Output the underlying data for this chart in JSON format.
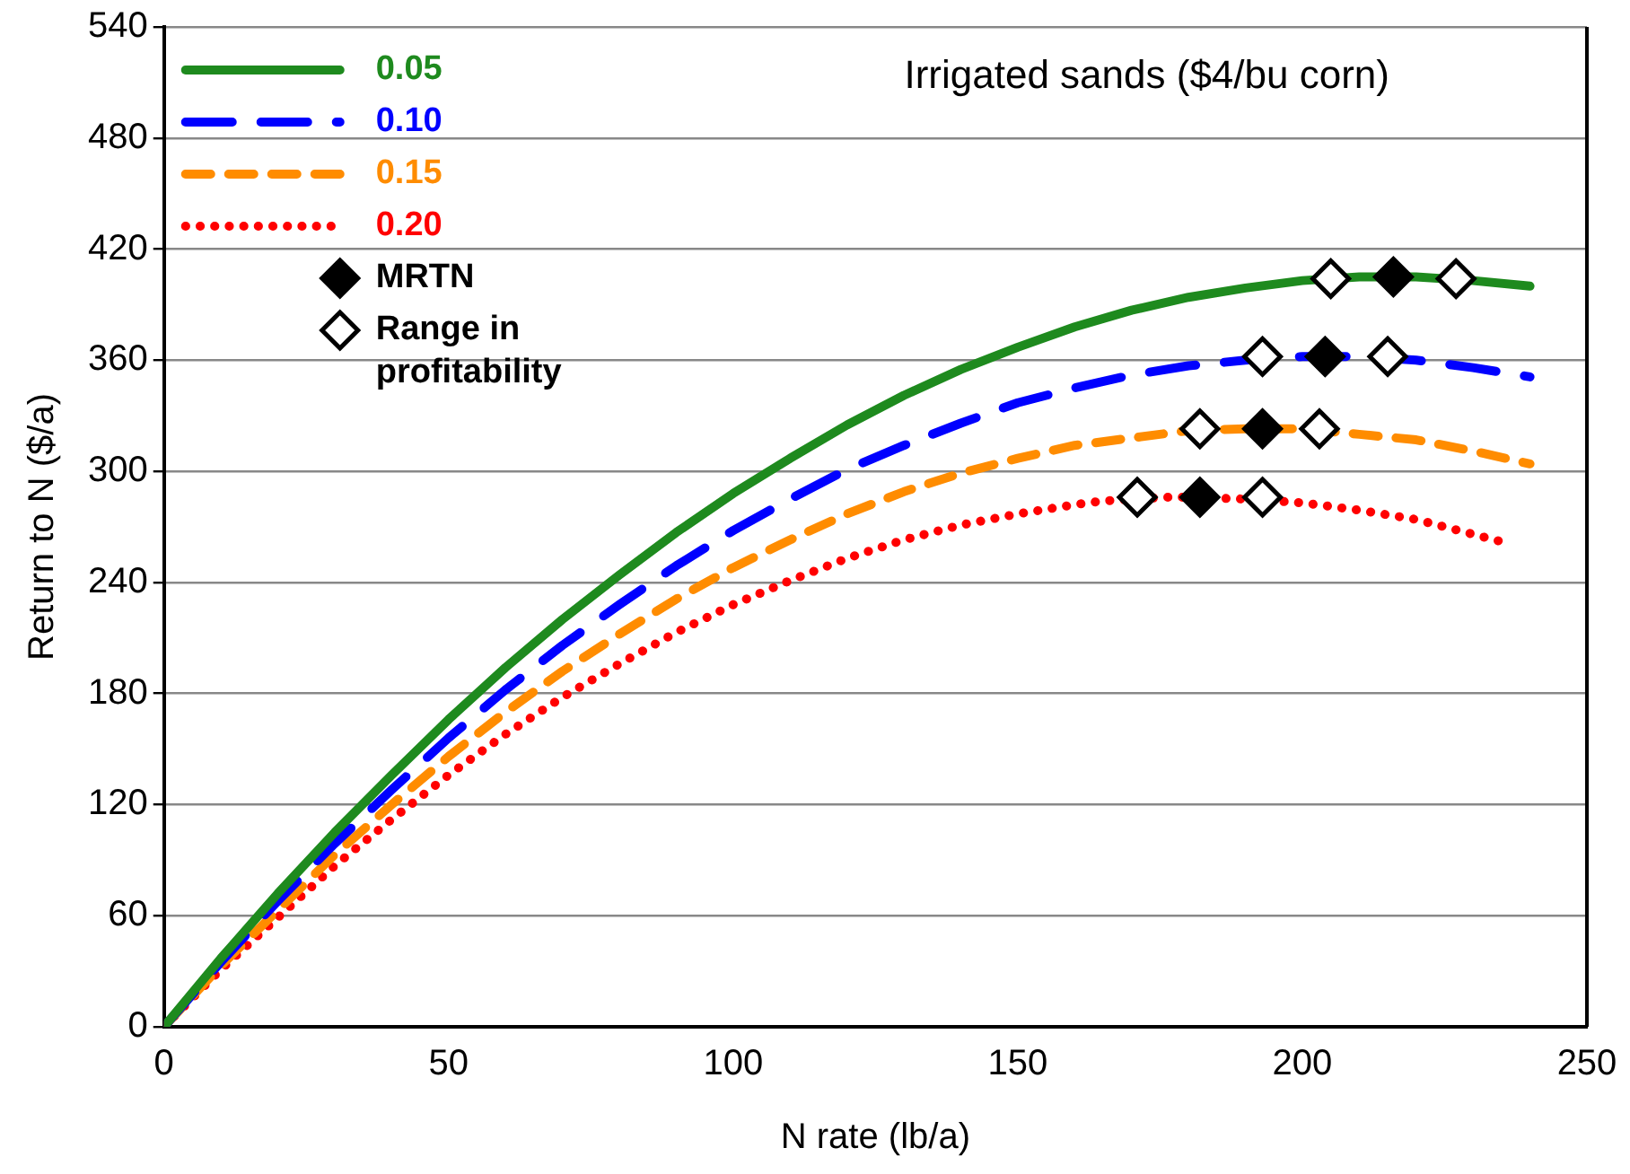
{
  "chart_data": {
    "type": "line",
    "title": "Irrigated sands ($4/bu corn)",
    "xlabel": "N rate (lb/a)",
    "ylabel": "Return to N ($/a)",
    "xlim": [
      0,
      250
    ],
    "xticks": [
      0,
      50,
      100,
      150,
      200,
      250
    ],
    "ylim": [
      0,
      540
    ],
    "yticks": [
      0,
      60,
      120,
      180,
      240,
      300,
      360,
      420,
      480,
      540
    ],
    "grid": "y",
    "legend": "top left",
    "marker": "none",
    "series": [
      {
        "name": "0.05",
        "color": "#1e8a1e",
        "line_style": "solid",
        "x": [
          0,
          10,
          20,
          30,
          40,
          50,
          60,
          70,
          80,
          90,
          100,
          110,
          120,
          130,
          140,
          150,
          160,
          170,
          180,
          190,
          200,
          210,
          220,
          230,
          240
        ],
        "values": [
          0,
          37,
          72,
          105,
          136,
          166,
          194,
          220,
          244,
          267,
          288,
          307,
          325,
          341,
          355,
          367,
          378,
          387,
          394,
          399,
          403,
          405,
          405,
          403,
          400
        ]
      },
      {
        "name": "0.10",
        "color": "#0000ff",
        "line_style": "dashed",
        "x": [
          0,
          10,
          20,
          30,
          40,
          50,
          60,
          70,
          80,
          90,
          100,
          110,
          120,
          130,
          140,
          150,
          160,
          170,
          180,
          190,
          200,
          210,
          220,
          230,
          240
        ],
        "values": [
          0,
          35,
          68,
          99,
          128,
          156,
          182,
          206,
          228,
          249,
          268,
          285,
          301,
          314,
          326,
          337,
          345,
          352,
          357,
          360,
          362,
          362,
          360,
          356,
          351
        ]
      },
      {
        "name": "0.15",
        "color": "#ff8c00",
        "line_style": "dashed",
        "x": [
          0,
          10,
          20,
          30,
          40,
          50,
          60,
          70,
          80,
          90,
          100,
          110,
          120,
          130,
          140,
          150,
          160,
          170,
          180,
          190,
          200,
          210,
          220,
          230,
          240
        ],
        "values": [
          0,
          33,
          63,
          93,
          120,
          146,
          170,
          192,
          212,
          231,
          248,
          263,
          277,
          289,
          299,
          307,
          314,
          318,
          322,
          323,
          323,
          320,
          317,
          311,
          304
        ]
      },
      {
        "name": "0.20",
        "color": "#ff0000",
        "line_style": "dotted",
        "x": [
          0,
          10,
          20,
          30,
          40,
          50,
          60,
          70,
          80,
          90,
          100,
          110,
          120,
          130,
          140,
          150,
          160,
          165,
          176,
          180,
          190,
          200,
          210,
          220,
          230,
          235
        ],
        "values": [
          0,
          31,
          59,
          87,
          112,
          136,
          158,
          178,
          196,
          213,
          228,
          241,
          253,
          263,
          271,
          277,
          282,
          284,
          286,
          286,
          285,
          283,
          279,
          274,
          266,
          262
        ]
      },
      {
        "name": "MRTN",
        "type": "scatter",
        "marker": "diamond",
        "color": "#000000",
        "x": [
          216,
          204,
          193,
          182
        ],
        "values": [
          405,
          362,
          323,
          286
        ]
      },
      {
        "name": "Range in profitability",
        "type": "scatter",
        "marker": "diamond",
        "color": "#ffffff",
        "x": [
          205,
          227,
          193,
          215,
          182,
          203,
          171,
          193
        ],
        "values": [
          404,
          404,
          362,
          362,
          323,
          323,
          286,
          286
        ]
      }
    ]
  }
}
